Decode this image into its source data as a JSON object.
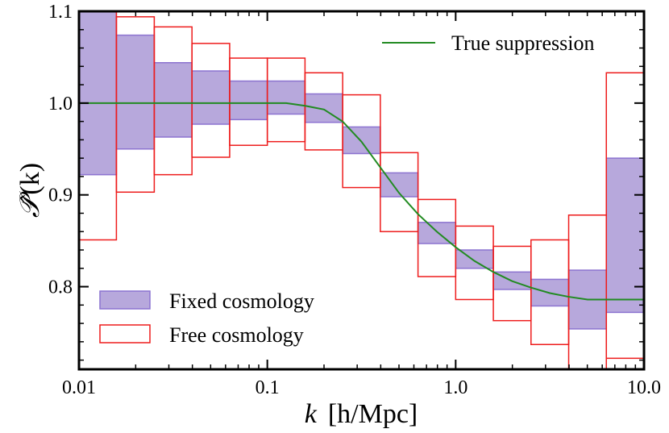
{
  "chart_data": {
    "type": "step-band",
    "xscale": "log",
    "xlim": [
      0.01,
      10.0
    ],
    "ylim": [
      0.71,
      1.1
    ],
    "xlabel_var": "k",
    "xlabel_units": "[h/Mpc]",
    "ylabel_var": "𝒫̂",
    "ylabel_arg": "(k)",
    "x_ticks": [
      {
        "value": 0.01,
        "label": "0.01"
      },
      {
        "value": 0.1,
        "label": "0.1"
      },
      {
        "value": 1.0,
        "label": "1.0"
      },
      {
        "value": 10.0,
        "label": "10.0"
      }
    ],
    "y_ticks": [
      {
        "value": 0.8,
        "label": "0.8"
      },
      {
        "value": 0.9,
        "label": "0.9"
      },
      {
        "value": 1.0,
        "label": "1.0"
      },
      {
        "value": 1.1,
        "label": "1.1"
      }
    ],
    "bins": [
      {
        "k_lo": 0.01,
        "k_hi": 0.0158,
        "fixed": [
          0.922,
          1.1
        ],
        "free": [
          0.851,
          1.1
        ]
      },
      {
        "k_lo": 0.0158,
        "k_hi": 0.0251,
        "fixed": [
          0.95,
          1.074
        ],
        "free": [
          0.903,
          1.094
        ]
      },
      {
        "k_lo": 0.0251,
        "k_hi": 0.0398,
        "fixed": [
          0.963,
          1.044
        ],
        "free": [
          0.922,
          1.083
        ]
      },
      {
        "k_lo": 0.0398,
        "k_hi": 0.0631,
        "fixed": [
          0.977,
          1.035
        ],
        "free": [
          0.941,
          1.065
        ]
      },
      {
        "k_lo": 0.0631,
        "k_hi": 0.1,
        "fixed": [
          0.982,
          1.024
        ],
        "free": [
          0.954,
          1.049
        ]
      },
      {
        "k_lo": 0.1,
        "k_hi": 0.1585,
        "fixed": [
          0.988,
          1.024
        ],
        "free": [
          0.958,
          1.049
        ]
      },
      {
        "k_lo": 0.1585,
        "k_hi": 0.2512,
        "fixed": [
          0.979,
          1.01
        ],
        "free": [
          0.949,
          1.033
        ]
      },
      {
        "k_lo": 0.2512,
        "k_hi": 0.3981,
        "fixed": [
          0.945,
          0.974
        ],
        "free": [
          0.908,
          1.009
        ]
      },
      {
        "k_lo": 0.3981,
        "k_hi": 0.631,
        "fixed": [
          0.898,
          0.924
        ],
        "free": [
          0.86,
          0.946
        ]
      },
      {
        "k_lo": 0.631,
        "k_hi": 1.0,
        "fixed": [
          0.847,
          0.87
        ],
        "free": [
          0.811,
          0.895
        ]
      },
      {
        "k_lo": 1.0,
        "k_hi": 1.5849,
        "fixed": [
          0.82,
          0.84
        ],
        "free": [
          0.786,
          0.866
        ]
      },
      {
        "k_lo": 1.5849,
        "k_hi": 2.5119,
        "fixed": [
          0.797,
          0.816
        ],
        "free": [
          0.763,
          0.844
        ]
      },
      {
        "k_lo": 2.5119,
        "k_hi": 3.9811,
        "fixed": [
          0.779,
          0.808
        ],
        "free": [
          0.737,
          0.851
        ]
      },
      {
        "k_lo": 3.9811,
        "k_hi": 6.3096,
        "fixed": [
          0.754,
          0.818
        ],
        "free": [
          0.71,
          0.878
        ]
      },
      {
        "k_lo": 6.3096,
        "k_hi": 10.0,
        "fixed": [
          0.772,
          0.94
        ],
        "free": [
          0.722,
          1.033
        ]
      }
    ],
    "series": [
      {
        "name": "True suppression",
        "color": "#228b22",
        "x": [
          0.01,
          0.0158,
          0.0251,
          0.0398,
          0.0631,
          0.1,
          0.126,
          0.159,
          0.2,
          0.251,
          0.316,
          0.398,
          0.501,
          0.631,
          0.794,
          1.0,
          1.259,
          1.585,
          1.995,
          2.512,
          3.162,
          3.981,
          5.012,
          6.31,
          7.943,
          10.0
        ],
        "y": [
          1.0,
          1.0,
          1.0,
          1.0,
          1.0,
          1.0,
          1.0,
          0.997,
          0.993,
          0.98,
          0.958,
          0.93,
          0.902,
          0.879,
          0.86,
          0.843,
          0.828,
          0.816,
          0.806,
          0.799,
          0.793,
          0.789,
          0.786,
          0.786,
          0.786,
          0.786
        ]
      }
    ],
    "band_styles": {
      "fixed": {
        "fill": "#b7a8dc",
        "stroke": "#8c73d0"
      },
      "free": {
        "fill": "none",
        "stroke": "#ee1c1c"
      }
    },
    "legend": [
      {
        "label": "True suppression",
        "kind": "line",
        "color": "#228b22",
        "position": "top-right"
      },
      {
        "label": "Fixed cosmology",
        "kind": "patch-filled",
        "position": "bottom-left"
      },
      {
        "label": "Free cosmology",
        "kind": "patch-outline",
        "position": "bottom-left"
      }
    ]
  }
}
